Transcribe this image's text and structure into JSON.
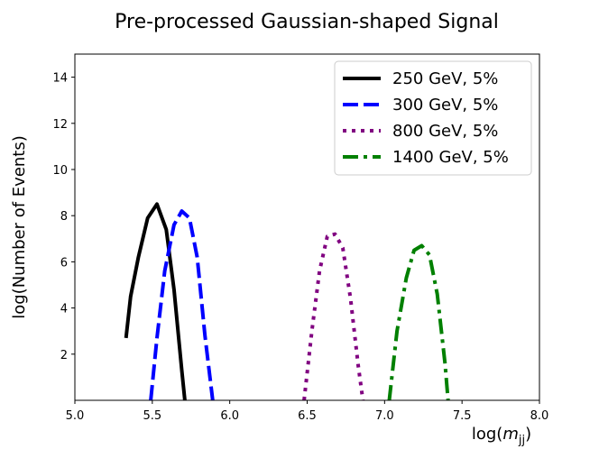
{
  "chart_data": {
    "type": "line",
    "title": "Pre-processed Gaussian-shaped Signal",
    "xlabel_prefix": "log(",
    "xlabel_var": "m",
    "xlabel_sub": "jj",
    "xlabel_suffix": ")",
    "ylabel": "log(Number of Events)",
    "xlim": [
      5.0,
      8.0
    ],
    "ylim": [
      0.0,
      15.0
    ],
    "xticks": [
      "5.0",
      "5.5",
      "6.0",
      "6.5",
      "7.0",
      "7.5",
      "8.0"
    ],
    "yticks": [
      "2",
      "4",
      "6",
      "8",
      "10",
      "12",
      "14"
    ],
    "grid": false,
    "legend_position": "top-right",
    "series": [
      {
        "name": "250 GeV, 5%",
        "color": "#000000",
        "dash": "solid",
        "x": [
          5.33,
          5.36,
          5.41,
          5.47,
          5.53,
          5.59,
          5.64,
          5.69,
          5.71
        ],
        "y": [
          2.7,
          4.5,
          6.2,
          7.9,
          8.5,
          7.4,
          4.8,
          1.3,
          0.0
        ]
      },
      {
        "name": "300 GeV, 5%",
        "color": "#0000ff",
        "dash": "dashed",
        "x": [
          5.49,
          5.53,
          5.58,
          5.64,
          5.69,
          5.74,
          5.79,
          5.84,
          5.89
        ],
        "y": [
          0.0,
          2.7,
          5.6,
          7.6,
          8.2,
          7.9,
          6.2,
          2.8,
          0.0
        ]
      },
      {
        "name": "800 GeV, 5%",
        "color": "#800080",
        "dash": "dotted",
        "x": [
          6.48,
          6.53,
          6.58,
          6.63,
          6.68,
          6.73,
          6.78,
          6.83,
          6.86
        ],
        "y": [
          0.0,
          3.0,
          5.6,
          7.1,
          7.2,
          6.6,
          4.4,
          1.5,
          0.0
        ]
      },
      {
        "name": "1400 GeV, 5%",
        "color": "#008000",
        "dash": "dashdot",
        "x": [
          7.03,
          7.08,
          7.14,
          7.19,
          7.24,
          7.29,
          7.34,
          7.39,
          7.41
        ],
        "y": [
          0.0,
          3.0,
          5.3,
          6.5,
          6.7,
          6.3,
          4.6,
          1.6,
          0.0
        ]
      }
    ]
  }
}
